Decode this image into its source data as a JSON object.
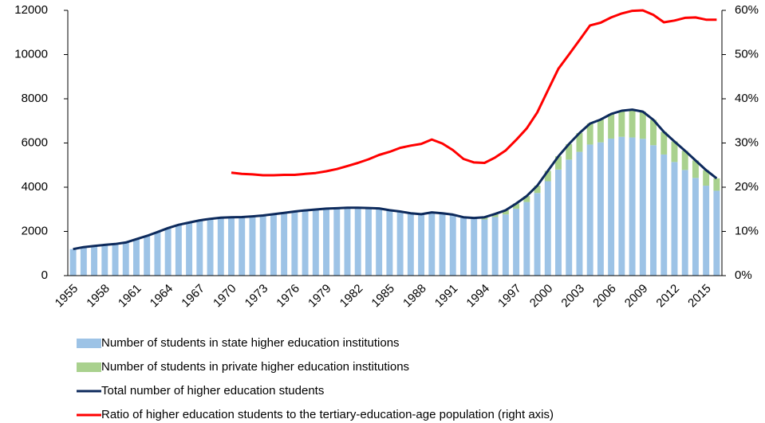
{
  "chart_data": {
    "type": "combo",
    "categories": [
      "1955",
      null,
      null,
      "1958",
      null,
      null,
      "1961",
      null,
      null,
      "1964",
      null,
      null,
      "1967",
      null,
      null,
      "1970",
      null,
      null,
      "1973",
      null,
      null,
      "1976",
      null,
      null,
      "1979",
      null,
      null,
      "1982",
      null,
      null,
      "1985",
      null,
      null,
      "1988",
      null,
      null,
      "1991",
      null,
      null,
      "1994",
      null,
      null,
      "1997",
      null,
      null,
      "2000",
      null,
      null,
      "2003",
      null,
      null,
      "2006",
      null,
      null,
      "2009",
      null,
      null,
      "2012",
      null,
      null,
      "2015",
      null
    ],
    "series": [
      {
        "name": "Number of students in state higher education institutions",
        "type": "bar",
        "color": "#9dc3e6",
        "values": [
          1200,
          1290,
          1340,
          1390,
          1430,
          1500,
          1650,
          1800,
          1970,
          2150,
          2300,
          2400,
          2500,
          2570,
          2620,
          2640,
          2650,
          2680,
          2720,
          2780,
          2840,
          2900,
          2950,
          2990,
          3030,
          3050,
          3070,
          3070,
          3060,
          3040,
          2960,
          2900,
          2820,
          2780,
          2860,
          2820,
          2760,
          2620,
          2560,
          2540,
          2650,
          2770,
          3030,
          3330,
          3740,
          4270,
          4800,
          5250,
          5600,
          5930,
          6030,
          6200,
          6280,
          6250,
          6190,
          5900,
          5480,
          5140,
          4780,
          4420,
          4070,
          3840
        ]
      },
      {
        "name": "Number of students in private higher education institutions",
        "type": "bar",
        "color": "#a9d18e",
        "values": [
          null,
          null,
          null,
          null,
          null,
          null,
          null,
          null,
          null,
          null,
          null,
          null,
          null,
          null,
          null,
          null,
          null,
          null,
          null,
          null,
          null,
          null,
          null,
          null,
          null,
          null,
          null,
          null,
          null,
          null,
          null,
          null,
          null,
          null,
          null,
          null,
          null,
          20,
          50,
          100,
          140,
          190,
          230,
          270,
          330,
          470,
          600,
          700,
          850,
          950,
          1030,
          1110,
          1180,
          1260,
          1230,
          1150,
          1020,
          930,
          870,
          790,
          700,
          560
        ]
      },
      {
        "name": "Total number of higher education students",
        "type": "line",
        "color": "#0d2a5c",
        "values": [
          1200,
          1290,
          1340,
          1390,
          1430,
          1500,
          1650,
          1800,
          1970,
          2150,
          2300,
          2400,
          2500,
          2570,
          2620,
          2640,
          2650,
          2680,
          2720,
          2780,
          2840,
          2900,
          2950,
          2990,
          3030,
          3050,
          3070,
          3070,
          3060,
          3040,
          2960,
          2900,
          2820,
          2780,
          2860,
          2820,
          2760,
          2640,
          2610,
          2640,
          2790,
          2960,
          3260,
          3600,
          4070,
          4740,
          5400,
          5950,
          6450,
          6880,
          7060,
          7310,
          7460,
          7510,
          7420,
          7050,
          6500,
          6070,
          5650,
          5210,
          4770,
          4400
        ]
      },
      {
        "name": "Ratio of higher education students to the tertiary-education-age population (right axis)",
        "type": "line",
        "axis": "y2",
        "color": "#ff0000",
        "values": [
          null,
          null,
          null,
          null,
          null,
          null,
          null,
          null,
          null,
          null,
          null,
          null,
          null,
          null,
          null,
          23.3,
          23.0,
          22.9,
          22.7,
          22.7,
          22.8,
          22.8,
          23.0,
          23.2,
          23.6,
          24.1,
          24.8,
          25.5,
          26.3,
          27.3,
          28.0,
          28.9,
          29.4,
          29.8,
          30.8,
          29.9,
          28.4,
          26.4,
          25.6,
          25.5,
          26.7,
          28.3,
          30.7,
          33.3,
          36.9,
          41.9,
          46.8,
          50.0,
          53.3,
          56.6,
          57.2,
          58.4,
          59.3,
          59.9,
          60.0,
          59.0,
          57.3,
          57.7,
          58.3,
          58.4,
          57.9,
          57.9
        ]
      }
    ],
    "ylim": [
      0,
      12000
    ],
    "yticks": [
      0,
      2000,
      4000,
      6000,
      8000,
      10000,
      12000
    ],
    "y2lim": [
      0,
      60
    ],
    "y2ticks": [
      {
        "value": 0,
        "label": "0%"
      },
      {
        "value": 10,
        "label": "10%"
      },
      {
        "value": 20,
        "label": "20%"
      },
      {
        "value": 30,
        "label": "30%"
      },
      {
        "value": 40,
        "label": "40%"
      },
      {
        "value": 50,
        "label": "50%"
      },
      {
        "value": 60,
        "label": "60%"
      }
    ],
    "stacked": true,
    "legend": "bottom"
  }
}
